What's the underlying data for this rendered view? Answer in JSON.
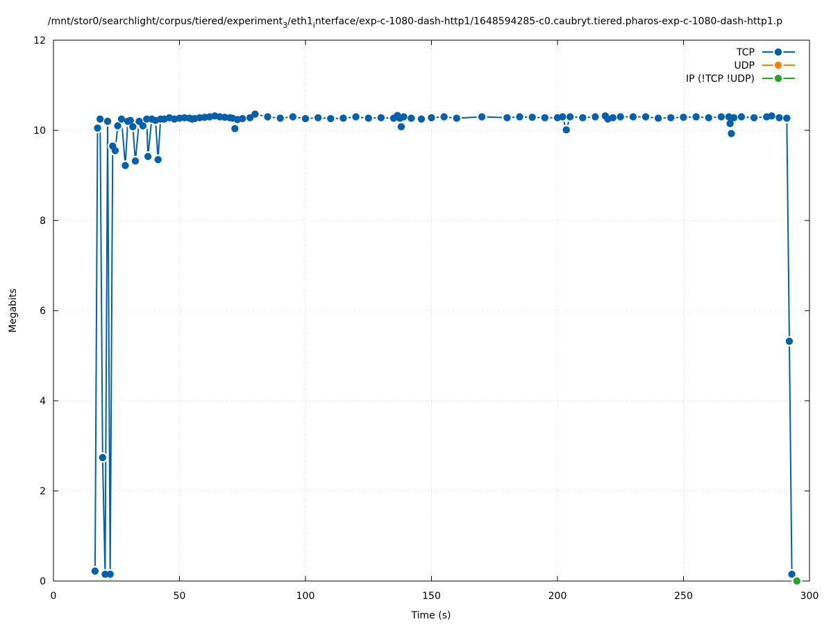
{
  "chart_data": {
    "type": "line",
    "title_parts": [
      "/mnt/stor0/searchlight/corpus/tiered/experiment",
      "3",
      "/eth1",
      "i",
      "nterface/exp-c-1080-dash-http1/1648594285-c0.caubryt.tiered.pharos-exp-c-1080-dash-http1.p"
    ],
    "xlabel": "Time (s)",
    "ylabel": "Megabits",
    "xlim": [
      0,
      300
    ],
    "ylim": [
      0,
      12
    ],
    "xticks": [
      0,
      50,
      100,
      150,
      200,
      250,
      300
    ],
    "yticks": [
      0,
      2,
      4,
      6,
      8,
      10,
      12
    ],
    "grid": true,
    "legend_position": "top-right",
    "series": [
      {
        "name": "TCP",
        "color": "#0060ad",
        "points": [
          [
            16.5,
            0.22
          ],
          [
            17.5,
            10.05
          ],
          [
            18.5,
            10.25
          ],
          [
            19.5,
            2.74
          ],
          [
            20.5,
            0.15
          ],
          [
            21.5,
            10.2
          ],
          [
            22.5,
            0.15
          ],
          [
            23.5,
            9.65
          ],
          [
            24.5,
            9.55
          ],
          [
            25.5,
            10.1
          ],
          [
            27,
            10.25
          ],
          [
            28.5,
            9.22
          ],
          [
            29.5,
            10.2
          ],
          [
            30.5,
            10.22
          ],
          [
            31.5,
            10.08
          ],
          [
            32.5,
            9.32
          ],
          [
            34,
            10.2
          ],
          [
            35.5,
            10.1
          ],
          [
            37,
            10.25
          ],
          [
            37.5,
            9.42
          ],
          [
            39,
            10.25
          ],
          [
            40.5,
            10.22
          ],
          [
            41.5,
            9.35
          ],
          [
            42.5,
            10.25
          ],
          [
            44,
            10.25
          ],
          [
            46,
            10.28
          ],
          [
            48,
            10.25
          ],
          [
            50,
            10.27
          ],
          [
            52,
            10.28
          ],
          [
            54,
            10.27
          ],
          [
            55,
            10.25
          ],
          [
            56,
            10.26
          ],
          [
            58,
            10.28
          ],
          [
            60,
            10.29
          ],
          [
            62,
            10.3
          ],
          [
            64,
            10.32
          ],
          [
            66,
            10.3
          ],
          [
            68,
            10.29
          ],
          [
            70,
            10.28
          ],
          [
            71,
            10.27
          ],
          [
            72,
            10.04
          ],
          [
            73,
            10.24
          ],
          [
            75,
            10.26
          ],
          [
            78,
            10.28
          ],
          [
            80,
            10.36
          ],
          [
            85,
            10.3
          ],
          [
            90,
            10.27
          ],
          [
            95,
            10.3
          ],
          [
            100,
            10.26
          ],
          [
            105,
            10.28
          ],
          [
            110,
            10.26
          ],
          [
            115,
            10.27
          ],
          [
            120,
            10.3
          ],
          [
            125,
            10.27
          ],
          [
            130,
            10.28
          ],
          [
            135,
            10.27
          ],
          [
            136.5,
            10.33
          ],
          [
            137.5,
            10.27
          ],
          [
            138,
            10.08
          ],
          [
            139,
            10.3
          ],
          [
            142,
            10.27
          ],
          [
            146,
            10.25
          ],
          [
            150,
            10.28
          ],
          [
            155,
            10.3
          ],
          [
            160,
            10.27
          ],
          [
            170,
            10.3
          ],
          [
            180,
            10.28
          ],
          [
            185,
            10.3
          ],
          [
            190,
            10.29
          ],
          [
            195,
            10.28
          ],
          [
            200,
            10.28
          ],
          [
            202,
            10.3
          ],
          [
            203.5,
            10.01
          ],
          [
            205,
            10.3
          ],
          [
            210,
            10.28
          ],
          [
            215,
            10.3
          ],
          [
            219,
            10.32
          ],
          [
            220,
            10.25
          ],
          [
            222,
            10.28
          ],
          [
            225,
            10.3
          ],
          [
            230,
            10.3
          ],
          [
            235,
            10.3
          ],
          [
            240,
            10.27
          ],
          [
            245,
            10.28
          ],
          [
            250,
            10.29
          ],
          [
            255,
            10.3
          ],
          [
            260,
            10.28
          ],
          [
            265,
            10.3
          ],
          [
            268,
            10.3
          ],
          [
            268.5,
            10.15
          ],
          [
            269,
            9.93
          ],
          [
            270,
            10.28
          ],
          [
            273,
            10.3
          ],
          [
            278,
            10.28
          ],
          [
            283,
            10.3
          ],
          [
            285,
            10.32
          ],
          [
            288,
            10.28
          ],
          [
            291,
            10.27
          ],
          [
            292,
            5.32
          ],
          [
            293,
            0.15
          ]
        ]
      },
      {
        "name": "UDP",
        "color": "#ff7f0e",
        "points": []
      },
      {
        "name": "IP (!TCP  !UDP)",
        "color": "#2ca02c",
        "points": [
          [
            295,
            0.0
          ]
        ]
      }
    ]
  }
}
